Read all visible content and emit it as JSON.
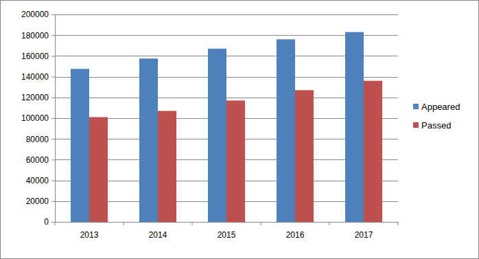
{
  "chart_data": {
    "type": "bar",
    "categories": [
      "2013",
      "2014",
      "2015",
      "2016",
      "2017"
    ],
    "series": [
      {
        "name": "Appeared",
        "color": "#4f81bd",
        "values": [
          147500,
          157500,
          167000,
          176000,
          183000
        ]
      },
      {
        "name": "Passed",
        "color": "#c0504d",
        "values": [
          101000,
          107000,
          117000,
          127000,
          136000
        ]
      }
    ],
    "ylim": [
      0,
      200000
    ],
    "yticks": [
      0,
      20000,
      40000,
      60000,
      80000,
      100000,
      120000,
      140000,
      160000,
      180000,
      200000
    ],
    "grid": true,
    "legend": "right"
  }
}
